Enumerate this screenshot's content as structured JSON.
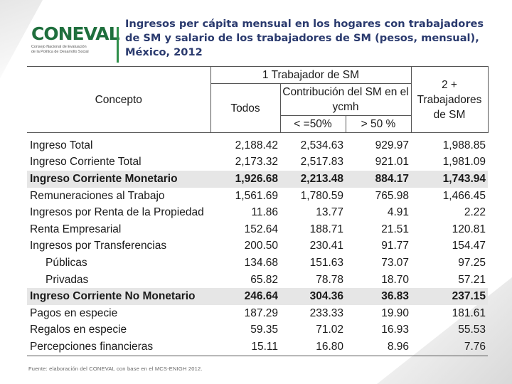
{
  "logo": {
    "word": "CONEVAL",
    "subtitle_line1": "Consejo Nacional de Evaluación",
    "subtitle_line2": "de la Política de Desarrollo Social"
  },
  "title": "Ingresos per cápita mensual en los hogares con trabajadores de SM y salario de los trabajadores de SM (pesos, mensual), México, 2012",
  "table": {
    "headers": {
      "concepto": "Concepto",
      "group_one": "1 Trabajador de SM",
      "todos": "Todos",
      "contribucion": "Contribución del SM en el ycmh",
      "le50": "< =50%",
      "gt50": "> 50 %",
      "two_plus": "2 + Trabajadores de SM"
    },
    "rows": [
      {
        "label": "Ingreso Total",
        "todos": "2,188.42",
        "le50": "2,534.63",
        "gt50": "929.97",
        "two_plus": "1,988.85"
      },
      {
        "label": "Ingreso Corriente Total",
        "todos": "2,173.32",
        "le50": "2,517.83",
        "gt50": "921.01",
        "two_plus": "1,981.09"
      },
      {
        "label": "Ingreso Corriente Monetario",
        "todos": "1,926.68",
        "le50": "2,213.48",
        "gt50": "884.17",
        "two_plus": "1,743.94"
      },
      {
        "label": "Remuneraciones al Trabajo",
        "todos": "1,561.69",
        "le50": "1,780.59",
        "gt50": "765.98",
        "two_plus": "1,466.45"
      },
      {
        "label": "Ingresos por Renta de la Propiedad",
        "todos": "11.86",
        "le50": "13.77",
        "gt50": "4.91",
        "two_plus": "2.22"
      },
      {
        "label": "Renta Empresarial",
        "todos": "152.64",
        "le50": "188.71",
        "gt50": "21.51",
        "two_plus": "120.81"
      },
      {
        "label": "Ingresos por Transferencias",
        "todos": "200.50",
        "le50": "230.41",
        "gt50": "91.77",
        "two_plus": "154.47"
      },
      {
        "label": "Públicas",
        "todos": "134.68",
        "le50": "151.63",
        "gt50": "73.07",
        "two_plus": "97.25"
      },
      {
        "label": "Privadas",
        "todos": "65.82",
        "le50": "78.78",
        "gt50": "18.70",
        "two_plus": "57.21"
      },
      {
        "label": "Ingreso Corriente No Monetario",
        "todos": "246.64",
        "le50": "304.36",
        "gt50": "36.83",
        "two_plus": "237.15"
      },
      {
        "label": "Pagos en especie",
        "todos": "187.29",
        "le50": "233.33",
        "gt50": "19.90",
        "two_plus": "181.61"
      },
      {
        "label": "Regalos en especie",
        "todos": "59.35",
        "le50": "71.02",
        "gt50": "16.93",
        "two_plus": "55.53"
      },
      {
        "label": "Percepciones financieras",
        "todos": "15.11",
        "le50": "16.80",
        "gt50": "8.96",
        "two_plus": "7.76"
      }
    ]
  },
  "source": "Fuente: elaboración del CONEVAL con base en el MCS-ENIGH 2012."
}
